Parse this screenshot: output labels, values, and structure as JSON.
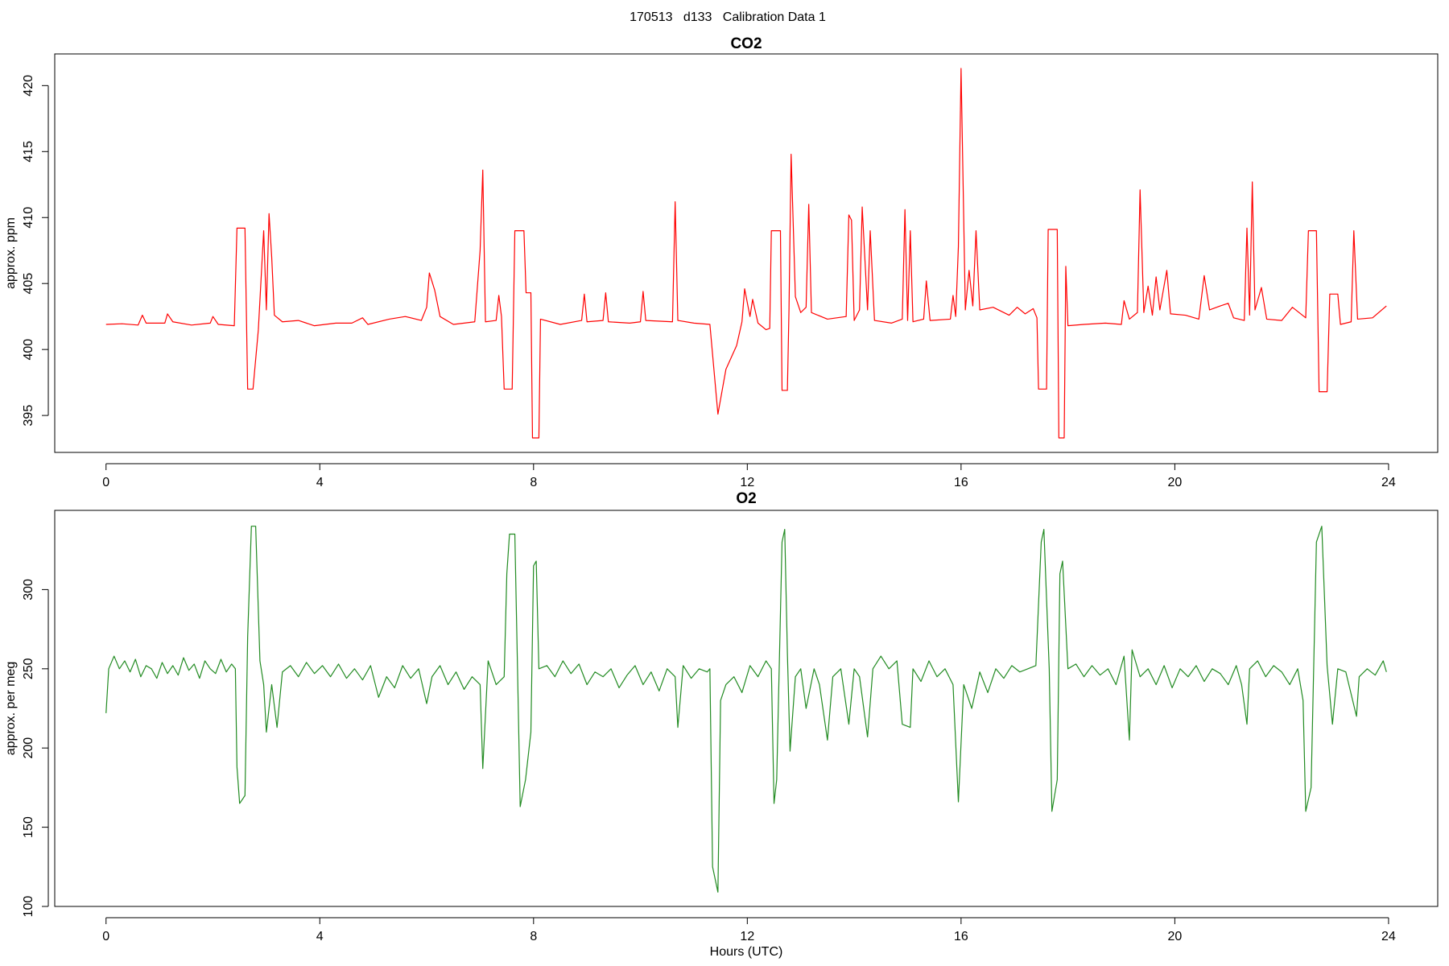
{
  "title": "170513   d133   Calibration Data 1",
  "chart_data": [
    {
      "type": "line",
      "title": "CO2",
      "ylabel": "approx. ppm",
      "color": "#ff0000",
      "xlim": [
        -0.96,
        24.92
      ],
      "ylim": [
        392.2,
        422.4
      ],
      "xticks": [
        0,
        4,
        8,
        12,
        16,
        20,
        24
      ],
      "yticks": [
        395,
        400,
        405,
        410,
        415,
        420
      ],
      "x": [
        0,
        0.3,
        0.6,
        0.68,
        0.75,
        1.1,
        1.15,
        1.25,
        1.6,
        1.95,
        2.0,
        2.1,
        2.4,
        2.45,
        2.6,
        2.65,
        2.75,
        2.85,
        2.95,
        3.0,
        3.05,
        3.1,
        3.15,
        3.3,
        3.6,
        3.9,
        4.3,
        4.6,
        4.8,
        4.9,
        5.3,
        5.6,
        5.9,
        6.0,
        6.05,
        6.15,
        6.25,
        6.5,
        6.9,
        7.0,
        7.05,
        7.1,
        7.3,
        7.35,
        7.4,
        7.45,
        7.6,
        7.65,
        7.82,
        7.86,
        7.95,
        7.98,
        8.1,
        8.13,
        8.5,
        8.9,
        8.95,
        9.0,
        9.3,
        9.35,
        9.4,
        9.8,
        10.0,
        10.05,
        10.1,
        10.6,
        10.65,
        10.7,
        11.0,
        11.3,
        11.45,
        11.6,
        11.8,
        11.9,
        11.95,
        12.05,
        12.1,
        12.2,
        12.35,
        12.42,
        12.45,
        12.62,
        12.65,
        12.75,
        12.78,
        12.82,
        12.9,
        13.0,
        13.1,
        13.15,
        13.2,
        13.5,
        13.85,
        13.9,
        13.95,
        14.0,
        14.1,
        14.15,
        14.25,
        14.3,
        14.38,
        14.7,
        14.9,
        14.95,
        15.0,
        15.05,
        15.1,
        15.3,
        15.35,
        15.42,
        15.8,
        15.85,
        15.9,
        15.95,
        16.0,
        16.08,
        16.15,
        16.22,
        16.28,
        16.35,
        16.6,
        16.9,
        17.05,
        17.2,
        17.35,
        17.42,
        17.45,
        17.6,
        17.63,
        17.8,
        17.83,
        17.93,
        17.96,
        18.0,
        18.3,
        18.7,
        19.0,
        19.05,
        19.15,
        19.3,
        19.35,
        19.42,
        19.5,
        19.58,
        19.65,
        19.72,
        19.85,
        19.92,
        20.2,
        20.45,
        20.55,
        20.65,
        20.85,
        21.0,
        21.1,
        21.3,
        21.35,
        21.4,
        21.45,
        21.5,
        21.62,
        21.72,
        22.0,
        22.2,
        22.45,
        22.5,
        22.65,
        22.7,
        22.85,
        22.9,
        23.05,
        23.1,
        23.3,
        23.35,
        23.42,
        23.7,
        23.96
      ],
      "values": [
        401.9,
        401.95,
        401.85,
        402.6,
        402,
        402,
        402.7,
        402.1,
        401.85,
        402,
        402.5,
        401.9,
        401.8,
        409.2,
        409.2,
        397,
        397,
        401.5,
        409,
        403,
        410.3,
        407,
        402.6,
        402.1,
        402.2,
        401.8,
        402,
        402,
        402.4,
        401.9,
        402.3,
        402.5,
        402.2,
        403.2,
        405.8,
        404.5,
        402.5,
        401.9,
        402.1,
        407.5,
        413.6,
        402.1,
        402.2,
        404.1,
        402.5,
        397,
        397,
        409,
        409,
        404.3,
        404.3,
        393.3,
        393.3,
        402.3,
        401.9,
        402.2,
        404.2,
        402.1,
        402.2,
        404.3,
        402.1,
        402,
        402.1,
        404.4,
        402.2,
        402.1,
        411.2,
        402.2,
        402,
        401.9,
        395.1,
        398.5,
        400.3,
        402.1,
        404.6,
        402.5,
        403.8,
        402,
        401.5,
        401.6,
        409,
        409,
        396.9,
        396.9,
        403,
        414.8,
        404,
        402.8,
        403.2,
        411,
        402.8,
        402.3,
        402.5,
        410.2,
        409.8,
        402.2,
        403,
        410.8,
        403,
        409,
        402.2,
        402,
        402.3,
        410.6,
        402.2,
        409,
        402.1,
        402.3,
        405.2,
        402.2,
        402.3,
        404.1,
        402.5,
        407.8,
        421.3,
        403,
        406,
        403.3,
        409,
        403,
        403.2,
        402.6,
        403.2,
        402.7,
        403.1,
        402.4,
        397,
        397,
        409.1,
        409.1,
        393.3,
        393.3,
        406.3,
        401.8,
        401.9,
        402,
        401.9,
        403.7,
        402.3,
        402.8,
        412.1,
        402.8,
        404.8,
        402.6,
        405.5,
        403,
        406,
        402.7,
        402.6,
        402.3,
        405.6,
        403,
        403.3,
        403.5,
        402.4,
        402.2,
        409.2,
        402.6,
        412.7,
        403,
        404.7,
        402.3,
        402.2,
        403.2,
        402.4,
        409,
        409,
        396.8,
        396.8,
        404.2,
        404.2,
        401.9,
        402.1,
        409,
        402.3,
        402.4,
        403.3
      ]
    },
    {
      "type": "line",
      "title": "O2",
      "ylabel": "approx. per meg",
      "xlabel": "Hours (UTC)",
      "color": "#228b22",
      "xlim": [
        -0.96,
        24.92
      ],
      "ylim": [
        100,
        350
      ],
      "xticks": [
        0,
        4,
        8,
        12,
        16,
        20,
        24
      ],
      "yticks": [
        100,
        150,
        200,
        250,
        300
      ],
      "x": [
        0,
        0.05,
        0.15,
        0.25,
        0.35,
        0.45,
        0.55,
        0.65,
        0.75,
        0.85,
        0.95,
        1.05,
        1.15,
        1.25,
        1.35,
        1.45,
        1.55,
        1.65,
        1.75,
        1.85,
        1.95,
        2.05,
        2.15,
        2.25,
        2.35,
        2.42,
        2.45,
        2.5,
        2.6,
        2.65,
        2.72,
        2.8,
        2.88,
        2.95,
        3.0,
        3.1,
        3.2,
        3.3,
        3.45,
        3.6,
        3.75,
        3.9,
        4.05,
        4.2,
        4.35,
        4.5,
        4.65,
        4.8,
        4.95,
        5.1,
        5.25,
        5.4,
        5.55,
        5.7,
        5.85,
        6.0,
        6.1,
        6.25,
        6.4,
        6.55,
        6.7,
        6.85,
        7.0,
        7.05,
        7.15,
        7.3,
        7.45,
        7.5,
        7.55,
        7.65,
        7.7,
        7.75,
        7.85,
        7.95,
        8.0,
        8.05,
        8.1,
        8.25,
        8.4,
        8.55,
        8.7,
        8.85,
        9.0,
        9.15,
        9.3,
        9.45,
        9.6,
        9.75,
        9.9,
        10.05,
        10.2,
        10.35,
        10.5,
        10.65,
        10.7,
        10.8,
        10.95,
        11.1,
        11.25,
        11.3,
        11.35,
        11.45,
        11.5,
        11.6,
        11.75,
        11.9,
        12.05,
        12.2,
        12.35,
        12.45,
        12.5,
        12.55,
        12.65,
        12.7,
        12.75,
        12.8,
        12.9,
        13.0,
        13.1,
        13.25,
        13.35,
        13.5,
        13.6,
        13.75,
        13.9,
        14.0,
        14.1,
        14.25,
        14.35,
        14.5,
        14.65,
        14.8,
        14.9,
        15.05,
        15.1,
        15.25,
        15.4,
        15.55,
        15.7,
        15.85,
        15.95,
        16.05,
        16.2,
        16.35,
        16.5,
        16.65,
        16.8,
        16.95,
        17.1,
        17.25,
        17.4,
        17.5,
        17.55,
        17.65,
        17.7,
        17.8,
        17.85,
        17.9,
        18.0,
        18.15,
        18.3,
        18.45,
        18.6,
        18.75,
        18.9,
        19.05,
        19.15,
        19.2,
        19.35,
        19.5,
        19.65,
        19.8,
        19.95,
        20.1,
        20.25,
        20.4,
        20.55,
        20.7,
        20.85,
        21.0,
        21.15,
        21.25,
        21.35,
        21.4,
        21.55,
        21.7,
        21.85,
        22.0,
        22.15,
        22.3,
        22.4,
        22.45,
        22.55,
        22.65,
        22.75,
        22.85,
        22.95,
        23.05,
        23.2,
        23.4,
        23.45,
        23.6,
        23.75,
        23.9,
        23.96
      ],
      "values": [
        222,
        250,
        258,
        250,
        255,
        248,
        256,
        245,
        252,
        250,
        244,
        254,
        247,
        252,
        246,
        257,
        249,
        253,
        244,
        255,
        250,
        247,
        256,
        248,
        253,
        250,
        188,
        165,
        170,
        270,
        340,
        340,
        255,
        240,
        210,
        240,
        213,
        248,
        252,
        245,
        254,
        247,
        252,
        245,
        253,
        244,
        250,
        243,
        252,
        232,
        245,
        238,
        252,
        244,
        250,
        228,
        245,
        252,
        240,
        248,
        237,
        245,
        240,
        187,
        255,
        240,
        245,
        310,
        335,
        335,
        250,
        163,
        180,
        210,
        315,
        318,
        250,
        252,
        245,
        255,
        247,
        253,
        240,
        248,
        245,
        250,
        238,
        246,
        252,
        240,
        248,
        236,
        250,
        245,
        213,
        252,
        244,
        250,
        248,
        250,
        125,
        109,
        230,
        240,
        245,
        235,
        252,
        245,
        255,
        250,
        165,
        180,
        330,
        338,
        260,
        198,
        245,
        250,
        225,
        250,
        240,
        205,
        245,
        250,
        215,
        250,
        245,
        207,
        250,
        258,
        250,
        255,
        215,
        213,
        250,
        242,
        255,
        245,
        250,
        240,
        166,
        240,
        225,
        248,
        235,
        250,
        244,
        252,
        248,
        250,
        252,
        330,
        338,
        250,
        160,
        180,
        310,
        318,
        250,
        253,
        245,
        252,
        246,
        250,
        240,
        258,
        205,
        262,
        245,
        250,
        240,
        252,
        238,
        250,
        245,
        252,
        242,
        250,
        247,
        240,
        252,
        240,
        215,
        250,
        255,
        245,
        252,
        248,
        240,
        250,
        230,
        160,
        175,
        330,
        340,
        252,
        215,
        250,
        248,
        220,
        245,
        250,
        246,
        255,
        248
      ]
    }
  ]
}
